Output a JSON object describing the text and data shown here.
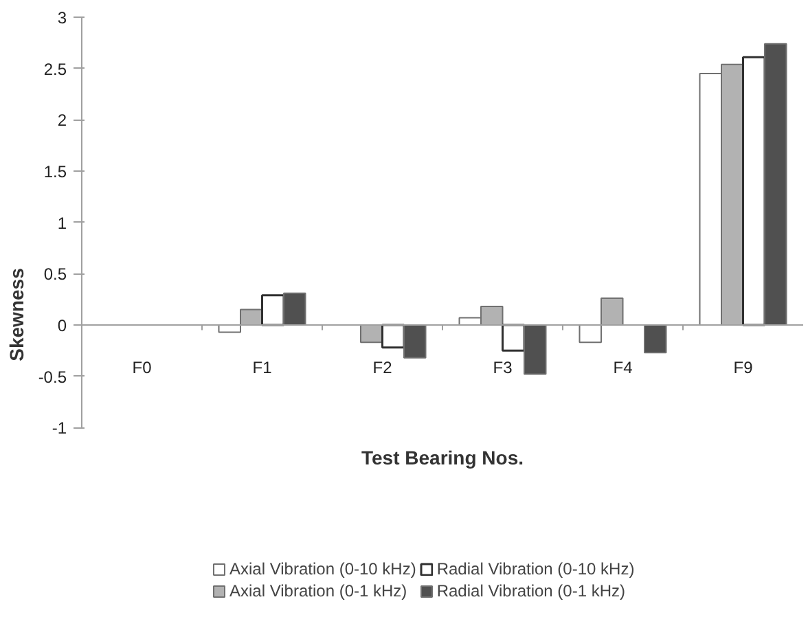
{
  "chart_data": {
    "type": "bar",
    "xlabel": "Test Bearing Nos.",
    "ylabel": "Skewness",
    "categories": [
      "F0",
      "F1",
      "F2",
      "F3",
      "F4",
      "F9"
    ],
    "series": [
      {
        "name": "Axial Vibration (0-10 kHz)",
        "color": "#ffffff",
        "values": [
          null,
          -0.07,
          null,
          0.07,
          -0.17,
          2.45
        ]
      },
      {
        "name": "Axial Vibration (0-1 kHz)",
        "color": "#b2b2b2",
        "values": [
          null,
          0.15,
          -0.17,
          0.18,
          0.26,
          2.54
        ]
      },
      {
        "name": "Radial Vibration (0-10 kHz)",
        "color": "#ffffff",
        "values": [
          null,
          0.29,
          -0.22,
          -0.25,
          null,
          2.61
        ]
      },
      {
        "name": "Radial Vibration (0-1 kHz)",
        "color": "#505050",
        "values": [
          null,
          0.31,
          -0.32,
          -0.48,
          -0.27,
          2.74
        ]
      }
    ],
    "ylim": [
      -1,
      3
    ],
    "yticks": [
      -1,
      -0.5,
      0,
      0.5,
      1,
      1.5,
      2,
      2.5,
      3
    ],
    "grid": false,
    "legend": "bottom"
  }
}
